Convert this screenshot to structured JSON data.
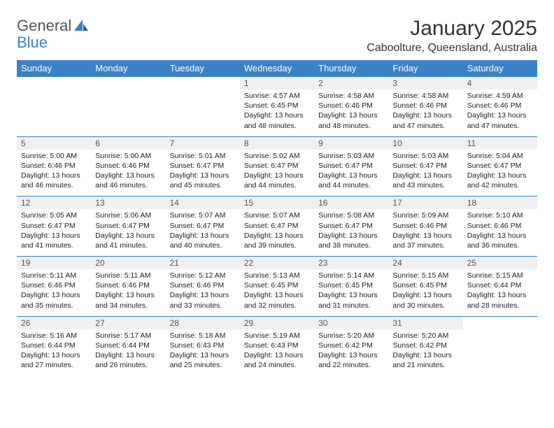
{
  "logo": {
    "textA": "General",
    "textB": "Blue"
  },
  "title": "January 2025",
  "location": "Caboolture, Queensland, Australia",
  "colors": {
    "headerBg": "#3b82c4",
    "headerText": "#ffffff",
    "dayNumBg": "#eef0f2",
    "dayNumText": "#555555",
    "borderTop": "#3b82c4",
    "bodyText": "#222222",
    "pageBg": "#ffffff"
  },
  "typography": {
    "titleFontSize": 30,
    "locationFontSize": 16,
    "headerFontSize": 13,
    "dayNumFontSize": 12,
    "detailFontSize": 10.5
  },
  "weekdays": [
    "Sunday",
    "Monday",
    "Tuesday",
    "Wednesday",
    "Thursday",
    "Friday",
    "Saturday"
  ],
  "weeks": [
    [
      null,
      null,
      null,
      {
        "num": "1",
        "sunrise": "Sunrise: 4:57 AM",
        "sunset": "Sunset: 6:45 PM",
        "d1": "Daylight: 13 hours",
        "d2": "and 48 minutes."
      },
      {
        "num": "2",
        "sunrise": "Sunrise: 4:58 AM",
        "sunset": "Sunset: 6:46 PM",
        "d1": "Daylight: 13 hours",
        "d2": "and 48 minutes."
      },
      {
        "num": "3",
        "sunrise": "Sunrise: 4:58 AM",
        "sunset": "Sunset: 6:46 PM",
        "d1": "Daylight: 13 hours",
        "d2": "and 47 minutes."
      },
      {
        "num": "4",
        "sunrise": "Sunrise: 4:59 AM",
        "sunset": "Sunset: 6:46 PM",
        "d1": "Daylight: 13 hours",
        "d2": "and 47 minutes."
      }
    ],
    [
      {
        "num": "5",
        "sunrise": "Sunrise: 5:00 AM",
        "sunset": "Sunset: 6:46 PM",
        "d1": "Daylight: 13 hours",
        "d2": "and 46 minutes."
      },
      {
        "num": "6",
        "sunrise": "Sunrise: 5:00 AM",
        "sunset": "Sunset: 6:46 PM",
        "d1": "Daylight: 13 hours",
        "d2": "and 46 minutes."
      },
      {
        "num": "7",
        "sunrise": "Sunrise: 5:01 AM",
        "sunset": "Sunset: 6:47 PM",
        "d1": "Daylight: 13 hours",
        "d2": "and 45 minutes."
      },
      {
        "num": "8",
        "sunrise": "Sunrise: 5:02 AM",
        "sunset": "Sunset: 6:47 PM",
        "d1": "Daylight: 13 hours",
        "d2": "and 44 minutes."
      },
      {
        "num": "9",
        "sunrise": "Sunrise: 5:03 AM",
        "sunset": "Sunset: 6:47 PM",
        "d1": "Daylight: 13 hours",
        "d2": "and 44 minutes."
      },
      {
        "num": "10",
        "sunrise": "Sunrise: 5:03 AM",
        "sunset": "Sunset: 6:47 PM",
        "d1": "Daylight: 13 hours",
        "d2": "and 43 minutes."
      },
      {
        "num": "11",
        "sunrise": "Sunrise: 5:04 AM",
        "sunset": "Sunset: 6:47 PM",
        "d1": "Daylight: 13 hours",
        "d2": "and 42 minutes."
      }
    ],
    [
      {
        "num": "12",
        "sunrise": "Sunrise: 5:05 AM",
        "sunset": "Sunset: 6:47 PM",
        "d1": "Daylight: 13 hours",
        "d2": "and 41 minutes."
      },
      {
        "num": "13",
        "sunrise": "Sunrise: 5:06 AM",
        "sunset": "Sunset: 6:47 PM",
        "d1": "Daylight: 13 hours",
        "d2": "and 41 minutes."
      },
      {
        "num": "14",
        "sunrise": "Sunrise: 5:07 AM",
        "sunset": "Sunset: 6:47 PM",
        "d1": "Daylight: 13 hours",
        "d2": "and 40 minutes."
      },
      {
        "num": "15",
        "sunrise": "Sunrise: 5:07 AM",
        "sunset": "Sunset: 6:47 PM",
        "d1": "Daylight: 13 hours",
        "d2": "and 39 minutes."
      },
      {
        "num": "16",
        "sunrise": "Sunrise: 5:08 AM",
        "sunset": "Sunset: 6:47 PM",
        "d1": "Daylight: 13 hours",
        "d2": "and 38 minutes."
      },
      {
        "num": "17",
        "sunrise": "Sunrise: 5:09 AM",
        "sunset": "Sunset: 6:46 PM",
        "d1": "Daylight: 13 hours",
        "d2": "and 37 minutes."
      },
      {
        "num": "18",
        "sunrise": "Sunrise: 5:10 AM",
        "sunset": "Sunset: 6:46 PM",
        "d1": "Daylight: 13 hours",
        "d2": "and 36 minutes."
      }
    ],
    [
      {
        "num": "19",
        "sunrise": "Sunrise: 5:11 AM",
        "sunset": "Sunset: 6:46 PM",
        "d1": "Daylight: 13 hours",
        "d2": "and 35 minutes."
      },
      {
        "num": "20",
        "sunrise": "Sunrise: 5:11 AM",
        "sunset": "Sunset: 6:46 PM",
        "d1": "Daylight: 13 hours",
        "d2": "and 34 minutes."
      },
      {
        "num": "21",
        "sunrise": "Sunrise: 5:12 AM",
        "sunset": "Sunset: 6:46 PM",
        "d1": "Daylight: 13 hours",
        "d2": "and 33 minutes."
      },
      {
        "num": "22",
        "sunrise": "Sunrise: 5:13 AM",
        "sunset": "Sunset: 6:45 PM",
        "d1": "Daylight: 13 hours",
        "d2": "and 32 minutes."
      },
      {
        "num": "23",
        "sunrise": "Sunrise: 5:14 AM",
        "sunset": "Sunset: 6:45 PM",
        "d1": "Daylight: 13 hours",
        "d2": "and 31 minutes."
      },
      {
        "num": "24",
        "sunrise": "Sunrise: 5:15 AM",
        "sunset": "Sunset: 6:45 PM",
        "d1": "Daylight: 13 hours",
        "d2": "and 30 minutes."
      },
      {
        "num": "25",
        "sunrise": "Sunrise: 5:15 AM",
        "sunset": "Sunset: 6:44 PM",
        "d1": "Daylight: 13 hours",
        "d2": "and 28 minutes."
      }
    ],
    [
      {
        "num": "26",
        "sunrise": "Sunrise: 5:16 AM",
        "sunset": "Sunset: 6:44 PM",
        "d1": "Daylight: 13 hours",
        "d2": "and 27 minutes."
      },
      {
        "num": "27",
        "sunrise": "Sunrise: 5:17 AM",
        "sunset": "Sunset: 6:44 PM",
        "d1": "Daylight: 13 hours",
        "d2": "and 26 minutes."
      },
      {
        "num": "28",
        "sunrise": "Sunrise: 5:18 AM",
        "sunset": "Sunset: 6:43 PM",
        "d1": "Daylight: 13 hours",
        "d2": "and 25 minutes."
      },
      {
        "num": "29",
        "sunrise": "Sunrise: 5:19 AM",
        "sunset": "Sunset: 6:43 PM",
        "d1": "Daylight: 13 hours",
        "d2": "and 24 minutes."
      },
      {
        "num": "30",
        "sunrise": "Sunrise: 5:20 AM",
        "sunset": "Sunset: 6:42 PM",
        "d1": "Daylight: 13 hours",
        "d2": "and 22 minutes."
      },
      {
        "num": "31",
        "sunrise": "Sunrise: 5:20 AM",
        "sunset": "Sunset: 6:42 PM",
        "d1": "Daylight: 13 hours",
        "d2": "and 21 minutes."
      },
      null
    ]
  ]
}
